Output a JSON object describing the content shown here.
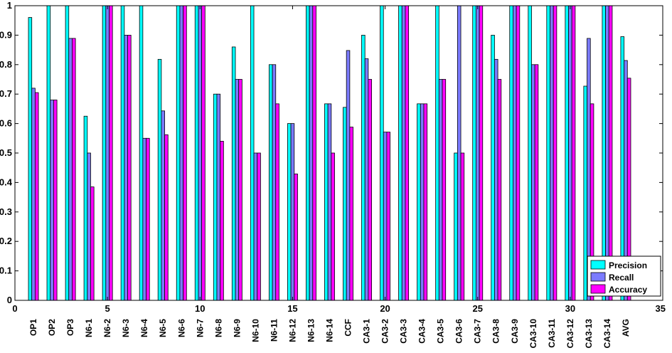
{
  "chart_data": {
    "type": "bar",
    "title": "",
    "xlabel": "",
    "ylabel": "",
    "xlim": [
      0,
      35
    ],
    "ylim": [
      0,
      1
    ],
    "xticks": [
      0,
      5,
      10,
      15,
      20,
      25,
      30,
      35
    ],
    "yticks": [
      0,
      0.1,
      0.2,
      0.3,
      0.4,
      0.5,
      0.6,
      0.7,
      0.8,
      0.9,
      1
    ],
    "grid": false,
    "legend_position": "bottom-right",
    "categories": [
      "OP1",
      "OP2",
      "OP3",
      "N6-1",
      "N6-2",
      "N6-3",
      "N6-4",
      "N6-5",
      "N6-6",
      "N6-7",
      "N6-8",
      "N6-9",
      "N6-10",
      "N6-11",
      "N6-12",
      "N6-13",
      "N6-14",
      "CCF",
      "CA3-1",
      "CA3-2",
      "CA3-3",
      "CA3-4",
      "CA3-5",
      "CA3-6",
      "CA3-7",
      "CA3-8",
      "CA3-9",
      "CA3-10",
      "CA3-11",
      "CA3-12",
      "CA3-13",
      "CA3-14",
      "AVG"
    ],
    "series": [
      {
        "name": "Precision",
        "color": "#00ffff",
        "values": [
          0.96,
          1.0,
          1.0,
          0.625,
          1.0,
          1.0,
          1.0,
          0.818,
          1.0,
          1.0,
          0.7,
          0.86,
          1.0,
          0.8,
          0.6,
          1.0,
          0.667,
          0.655,
          0.9,
          1.0,
          1.0,
          0.667,
          1.0,
          0.5,
          1.0,
          0.9,
          1.0,
          1.0,
          1.0,
          1.0,
          0.727,
          1.0,
          0.895
        ]
      },
      {
        "name": "Recall",
        "color": "#7b7bff",
        "values": [
          0.72,
          0.68,
          0.889,
          0.5,
          1.0,
          0.9,
          0.55,
          0.643,
          1.0,
          1.0,
          0.7,
          0.75,
          0.5,
          0.8,
          0.6,
          1.0,
          0.667,
          0.848,
          0.82,
          0.571,
          1.0,
          0.667,
          0.75,
          1.0,
          1.0,
          0.818,
          1.0,
          0.8,
          1.0,
          1.0,
          0.889,
          1.0,
          0.814
        ]
      },
      {
        "name": "Accuracy",
        "color": "#ff00ff",
        "values": [
          0.705,
          0.68,
          0.889,
          0.385,
          1.0,
          0.9,
          0.55,
          0.562,
          1.0,
          1.0,
          0.54,
          0.75,
          0.5,
          0.667,
          0.429,
          1.0,
          0.5,
          0.588,
          0.75,
          0.571,
          1.0,
          0.667,
          0.75,
          0.5,
          1.0,
          0.75,
          1.0,
          0.8,
          1.0,
          1.0,
          0.667,
          1.0,
          0.754
        ]
      }
    ]
  }
}
